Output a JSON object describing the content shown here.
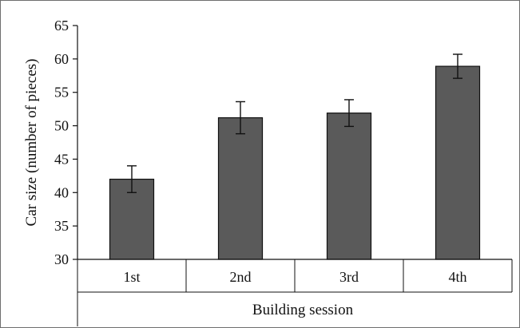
{
  "chart_data": {
    "type": "bar",
    "categories": [
      "1st",
      "2nd",
      "3rd",
      "4th"
    ],
    "values": [
      42.0,
      51.2,
      51.9,
      58.9
    ],
    "error_plus": [
      2.0,
      2.4,
      2.0,
      1.8
    ],
    "error_minus": [
      2.0,
      2.4,
      2.0,
      1.8
    ],
    "title": "",
    "xlabel": "Building session",
    "ylabel": "Car size (number of pieces)",
    "ylim": [
      30,
      65
    ],
    "yticks": [
      "30",
      "35",
      "40",
      "45",
      "50",
      "55",
      "60",
      "65"
    ],
    "grid": false,
    "legend": "none",
    "bar_color": "#5a5a5a",
    "bar_edge_color": "#111111"
  }
}
